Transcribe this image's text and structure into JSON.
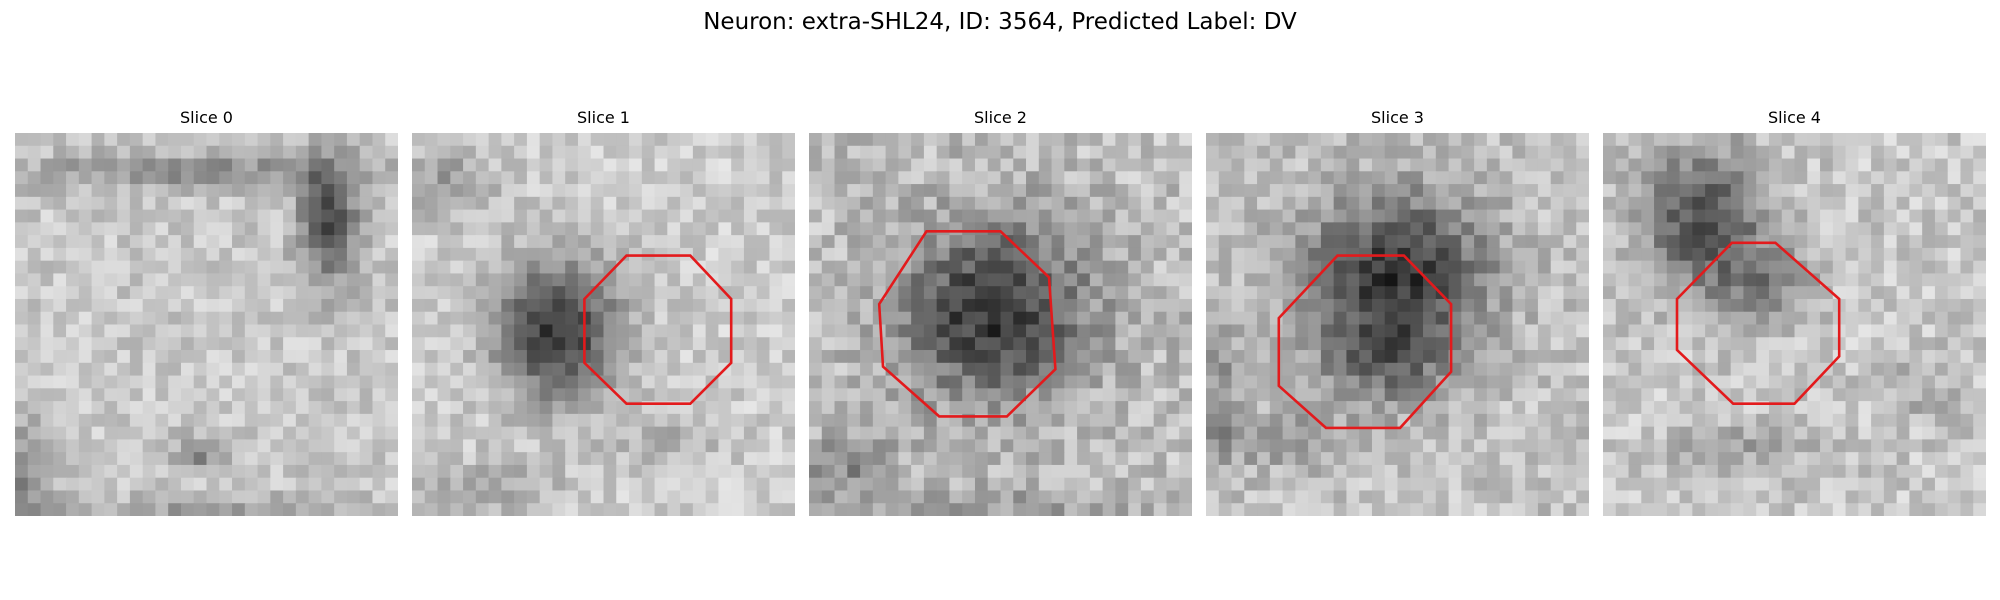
{
  "figure": {
    "title": "Neuron: extra-SHL24, ID: 3564, Predicted Label: DV"
  },
  "colors": {
    "roi_outline": "#e31a1c"
  },
  "panels": [
    {
      "title": "Slice 0",
      "has_roi": false
    },
    {
      "title": "Slice 1",
      "has_roi": true
    },
    {
      "title": "Slice 2",
      "has_roi": true
    },
    {
      "title": "Slice 3",
      "has_roi": true
    },
    {
      "title": "Slice 4",
      "has_roi": true
    }
  ]
}
